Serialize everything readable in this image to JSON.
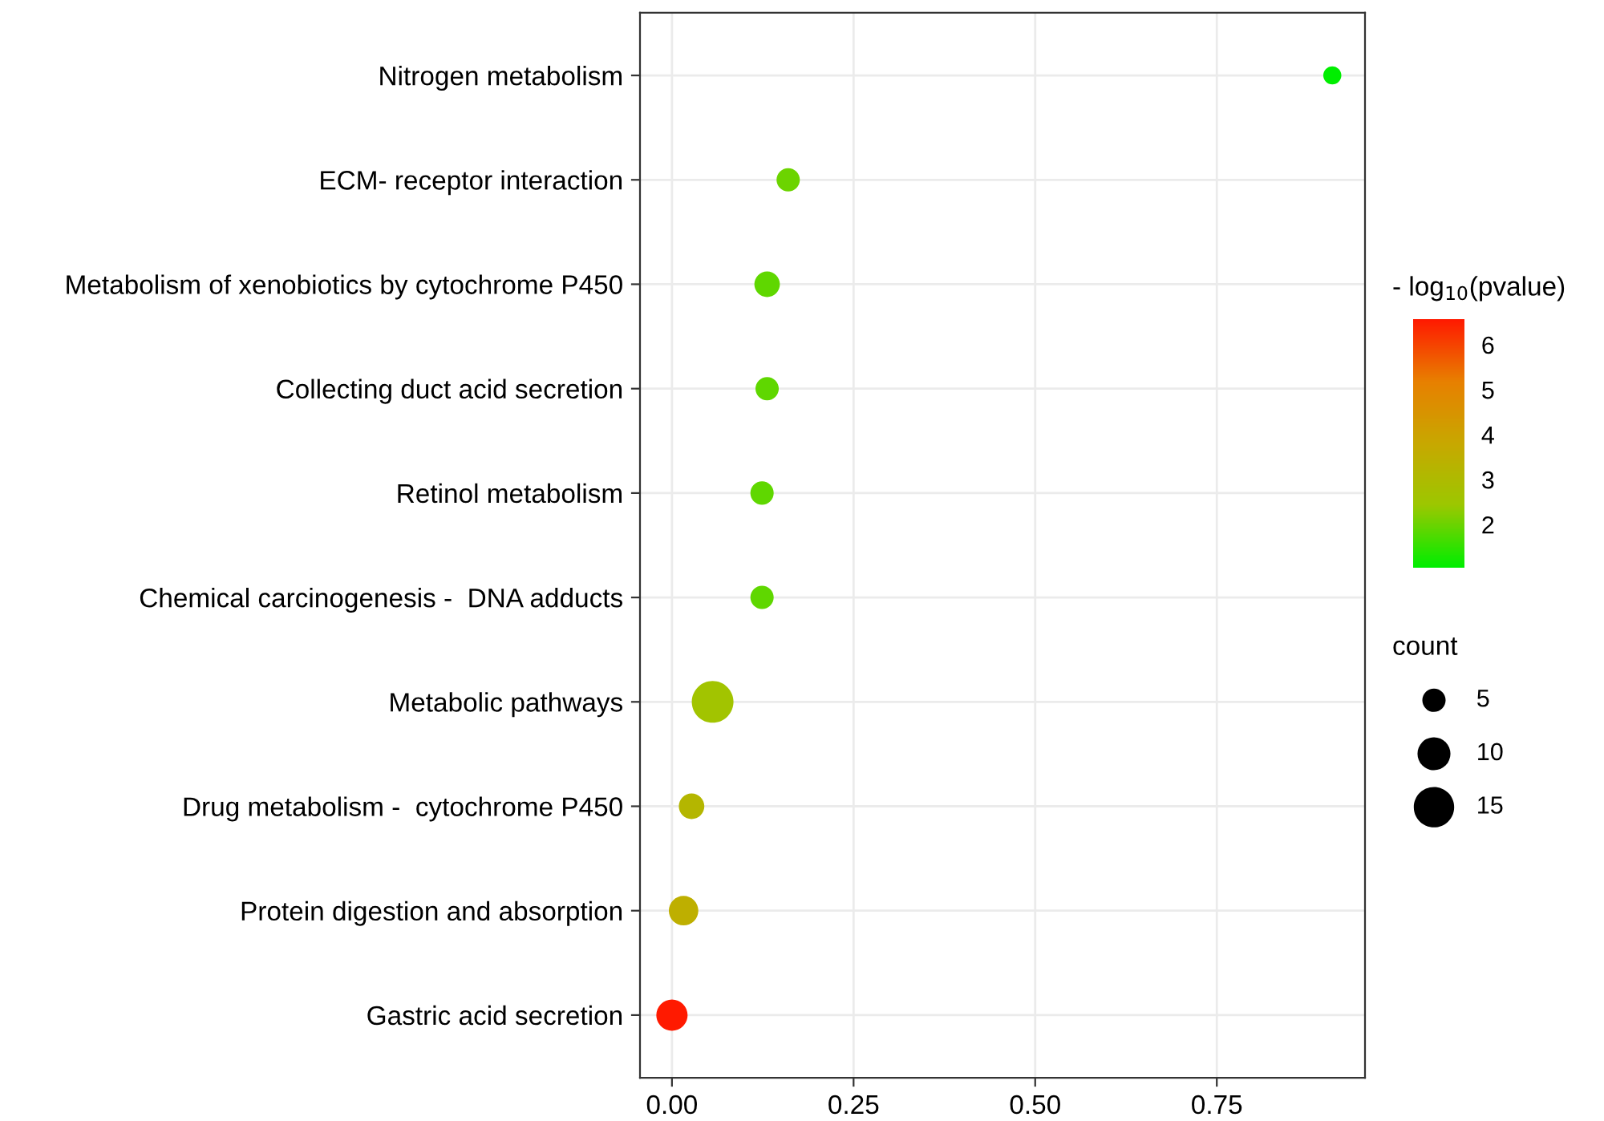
{
  "chart_data": {
    "type": "bubble",
    "orientation": "horizontal",
    "categories": [
      "Nitrogen metabolism",
      "ECM- receptor interaction",
      "Metabolism of xenobiotics by cytochrome P450",
      "Collecting duct acid secretion",
      "Retinol metabolism",
      "Chemical carcinogenesis -  DNA adducts",
      "Metabolic pathways",
      "Drug metabolism -  cytochrome P450",
      "Protein digestion and absorption",
      "Gastric acid secretion"
    ],
    "values": [
      0.909,
      0.16,
      0.131,
      0.131,
      0.124,
      0.124,
      0.056,
      0.027,
      0.016,
      0.0
    ],
    "sizes": [
      3,
      5,
      6,
      5,
      5,
      5,
      16,
      6,
      8,
      9
    ],
    "cvalues": [
      1.04,
      2.0,
      1.9,
      1.9,
      1.9,
      1.9,
      2.6,
      3.2,
      3.5,
      6.57
    ],
    "size_legend": [
      5,
      10,
      15
    ],
    "clim": [
      1.04,
      6.57
    ],
    "cticks": [
      2,
      3,
      4,
      5,
      6
    ],
    "clabel": "- log$_{10}$(pvalue)",
    "legend_title": "count",
    "xlim": [
      -0.044,
      0.954
    ],
    "xticks": [
      {
        "value": 0,
        "label": "0.00"
      },
      {
        "value": 0.25,
        "label": "0.25"
      },
      {
        "value": 0.5,
        "label": "0.50"
      },
      {
        "value": 0.75,
        "label": "0.75"
      }
    ],
    "grid": true
  }
}
